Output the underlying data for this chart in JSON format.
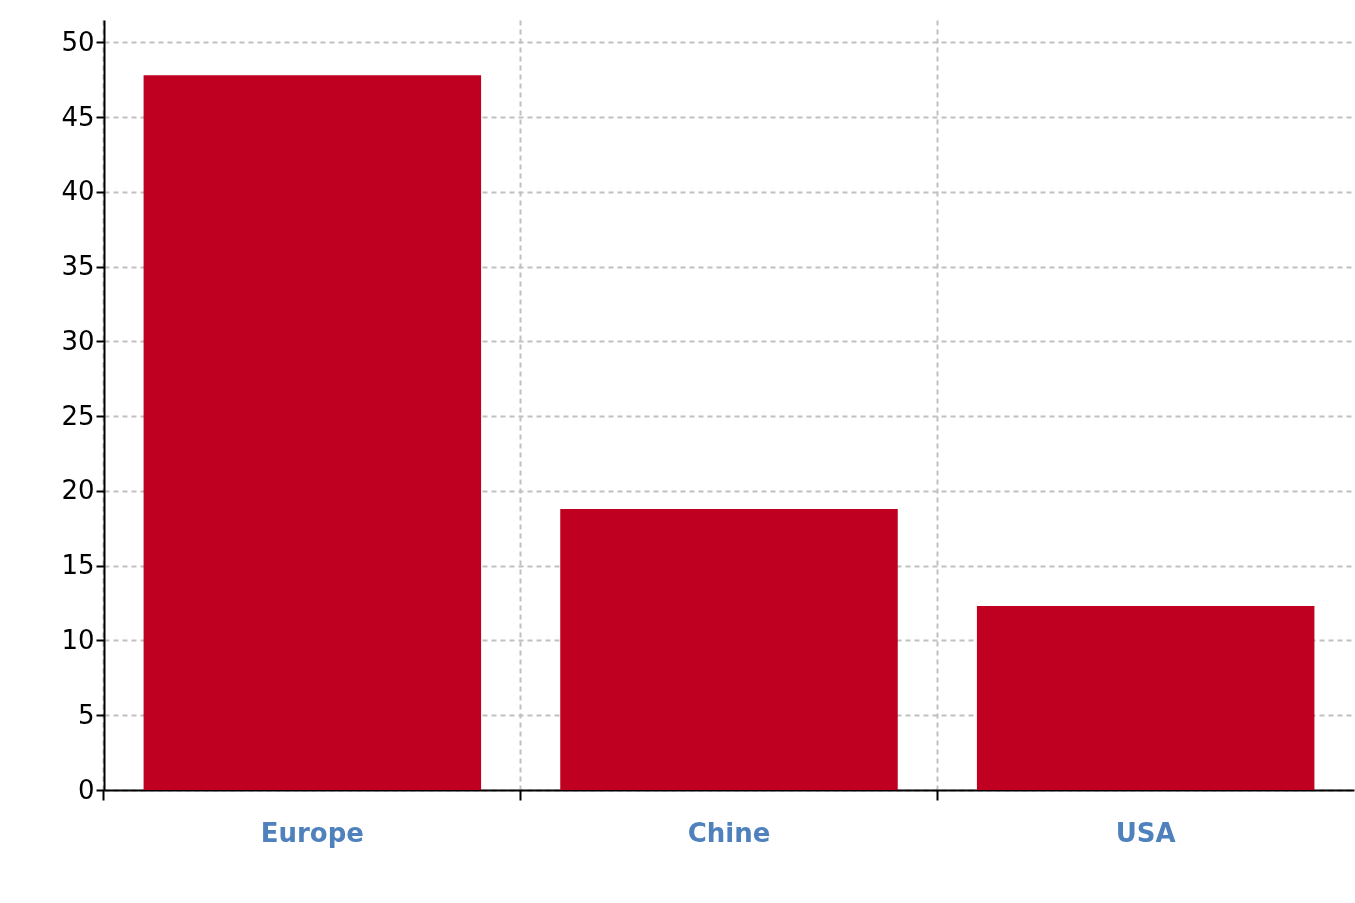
{
  "chart_data": {
    "type": "bar",
    "categories": [
      "Europe",
      "Chine",
      "USA"
    ],
    "values": [
      47.8,
      18.8,
      12.3
    ],
    "color": "#c00020",
    "ylim": [
      0,
      51.5
    ],
    "yticks": [
      0,
      5,
      10,
      15,
      20,
      25,
      30,
      35,
      40,
      45,
      50
    ],
    "grid": true
  }
}
